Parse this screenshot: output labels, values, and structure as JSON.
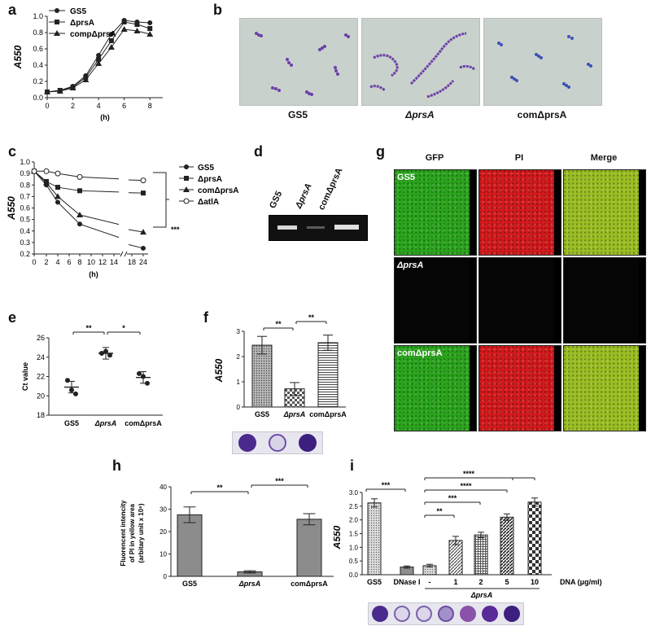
{
  "panels": {
    "a": {
      "letter": "a"
    },
    "b": {
      "letter": "b"
    },
    "c": {
      "letter": "c"
    },
    "d": {
      "letter": "d"
    },
    "e": {
      "letter": "e"
    },
    "f": {
      "letter": "f"
    },
    "g": {
      "letter": "g"
    },
    "h": {
      "letter": "h"
    },
    "i": {
      "letter": "i"
    }
  },
  "panel_b": {
    "labels": [
      "GS5",
      "ΔprsA",
      "comΔprsA"
    ]
  },
  "panel_d": {
    "lanes": [
      "GS5",
      "ΔprsA",
      "comΔprsA"
    ]
  },
  "panel_g": {
    "columns": [
      "GFP",
      "PI",
      "Merge"
    ],
    "rows": [
      "GS5",
      "ΔprsA",
      "comΔprsA"
    ]
  },
  "colors": {
    "line": "#222222",
    "bar_gray": "#8c8c8c",
    "gfp": "#2aa51c",
    "pi": "#d4191b",
    "merge": "#9bbf22",
    "crystal_violet": "#5b2a98"
  },
  "chart_data": [
    {
      "id": "a",
      "type": "line",
      "x": [
        0,
        1,
        2,
        3,
        4,
        5,
        6,
        7,
        8
      ],
      "xlabel": "(h)",
      "ylabel": "A550",
      "xlim": [
        0,
        9
      ],
      "ylim": [
        0,
        1.0
      ],
      "xticks": [
        "0",
        "2",
        "4",
        "6",
        "8"
      ],
      "yticks": [
        "0.0",
        "0.2",
        "0.4",
        "0.6",
        "0.8",
        "1.0"
      ],
      "series": [
        {
          "name": "GS5",
          "marker": "circle-filled",
          "values": [
            0.07,
            0.09,
            0.14,
            0.27,
            0.52,
            0.78,
            0.95,
            0.93,
            0.92
          ]
        },
        {
          "name": "ΔprsA",
          "marker": "square",
          "values": [
            0.07,
            0.09,
            0.13,
            0.25,
            0.47,
            0.7,
            0.93,
            0.9,
            0.85
          ]
        },
        {
          "name": "compΔprsA",
          "marker": "triangle",
          "values": [
            0.07,
            0.08,
            0.12,
            0.22,
            0.42,
            0.62,
            0.84,
            0.82,
            0.78
          ]
        }
      ]
    },
    {
      "id": "c",
      "type": "line",
      "x": [
        0,
        2,
        4,
        8,
        24
      ],
      "xticks": [
        "0",
        "2",
        "4",
        "6",
        "8",
        "10",
        "12",
        "14",
        "18",
        "24"
      ],
      "xlabel": "(h)",
      "ylabel": "A550",
      "ylim": [
        0.2,
        1.0
      ],
      "yticks": [
        "0.2",
        "0.3",
        "0.4",
        "0.5",
        "0.6",
        "0.7",
        "0.8",
        "0.9",
        "1.0"
      ],
      "annotation": "***",
      "series": [
        {
          "name": "GS5",
          "marker": "circle-filled",
          "values": [
            0.92,
            0.8,
            0.65,
            0.46,
            0.25
          ]
        },
        {
          "name": "ΔprsA",
          "marker": "square",
          "values": [
            0.92,
            0.83,
            0.78,
            0.75,
            0.73
          ]
        },
        {
          "name": "comΔprsA",
          "marker": "triangle",
          "values": [
            0.92,
            0.82,
            0.7,
            0.54,
            0.39
          ]
        },
        {
          "name": "ΔatlA",
          "marker": "circle-open",
          "values": [
            0.92,
            0.92,
            0.9,
            0.87,
            0.84
          ]
        }
      ]
    },
    {
      "id": "e",
      "type": "scatter",
      "categories": [
        "GS5",
        "ΔprsA",
        "comΔprsA"
      ],
      "ylabel": "Ct value",
      "ylim": [
        18,
        26
      ],
      "yticks": [
        "18",
        "20",
        "22",
        "24",
        "26"
      ],
      "points": [
        [
          21.6,
          20.6,
          20.2
        ],
        [
          24.4,
          24.6,
          24.2
        ],
        [
          22.3,
          22.0,
          21.3
        ]
      ],
      "means": [
        20.9,
        24.4,
        21.9
      ],
      "sig": [
        "**",
        "*"
      ]
    },
    {
      "id": "f",
      "type": "bar",
      "categories": [
        "GS5",
        "ΔprsA",
        "comΔprsA"
      ],
      "ylabel": "A550",
      "ylim": [
        0,
        3
      ],
      "yticks": [
        "0",
        "1",
        "2",
        "3"
      ],
      "values": [
        2.45,
        0.72,
        2.55
      ],
      "errors": [
        0.35,
        0.25,
        0.3
      ],
      "sig": [
        "**",
        "**"
      ]
    },
    {
      "id": "h",
      "type": "bar",
      "categories": [
        "GS5",
        "ΔprsA",
        "comΔprsA"
      ],
      "ylabel": "Fluorencent intencity of PI in yellow area (arbitary unit x 10⁶)",
      "ylim": [
        0,
        40
      ],
      "yticks": [
        "0",
        "10",
        "20",
        "30",
        "40"
      ],
      "values": [
        27.5,
        2.0,
        25.5
      ],
      "errors": [
        3.5,
        0.5,
        2.5
      ],
      "sig": [
        "**",
        "***"
      ]
    },
    {
      "id": "i",
      "type": "bar",
      "categories": [
        "GS5",
        "DNase I",
        "-",
        "1",
        "2",
        "5",
        "10"
      ],
      "ylabel": "A550",
      "ylim": [
        0,
        3.0
      ],
      "yticks": [
        "0.0",
        "0.5",
        "1.0",
        "1.5",
        "2.0",
        "2.5",
        "3.0"
      ],
      "values": [
        2.62,
        0.28,
        0.33,
        1.25,
        1.45,
        2.1,
        2.65
      ],
      "errors": [
        0.15,
        0.04,
        0.05,
        0.15,
        0.1,
        0.12,
        0.15
      ],
      "group_label": "ΔprsA",
      "unit_label": "DNA (μg/ml)",
      "sig": [
        "***",
        "**",
        "***",
        "****",
        "****"
      ]
    }
  ]
}
